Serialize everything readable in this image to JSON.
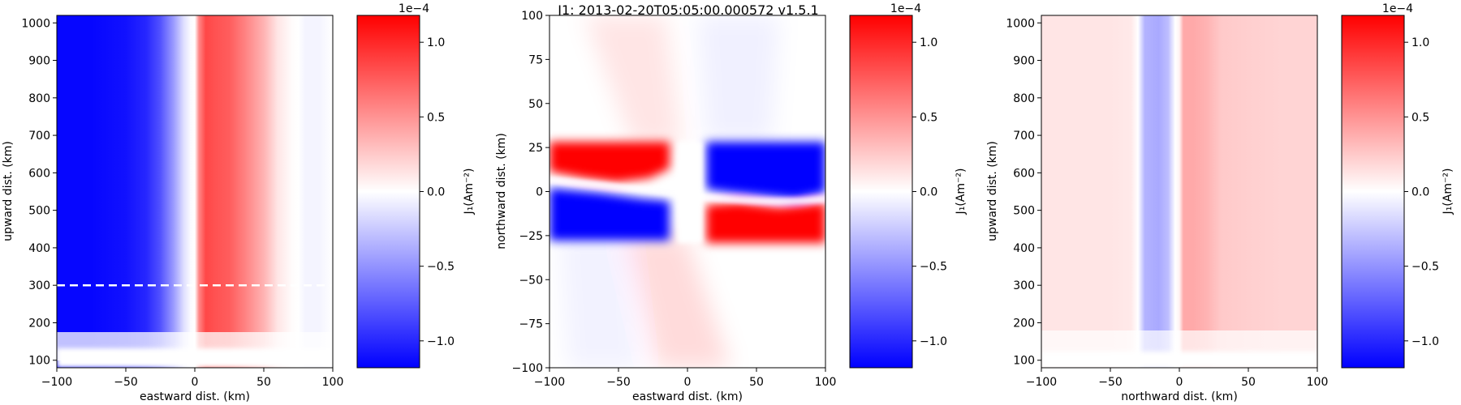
{
  "figure_title": "J1: 2013-02-20T05:05:00.000572  v1.5.1",
  "chart_data": [
    {
      "type": "heatmap",
      "panel": "eastward-upward",
      "xlabel": "eastward dist. (km)",
      "ylabel": "upward dist. (km)",
      "xlim": [
        -100,
        100
      ],
      "ylim": [
        80,
        1020
      ],
      "xticks": [
        -100,
        -50,
        0,
        50,
        100
      ],
      "yticks": [
        100,
        200,
        300,
        400,
        500,
        600,
        700,
        800,
        900,
        1000
      ],
      "dashed_line": {
        "y": 300,
        "x_range": [
          -100,
          100
        ],
        "color": "#ffffff"
      },
      "profile": {
        "description": "J1 varies mainly with eastward distance, roughly constant above 120 km",
        "x": [
          -100,
          -75,
          -50,
          -35,
          -25,
          -15,
          -8,
          -3,
          0,
          3,
          8,
          15,
          25,
          35,
          50,
          60,
          70,
          75,
          80,
          90,
          100
        ],
        "value_e4": [
          -1.15,
          -1.15,
          -1.1,
          -1.0,
          -0.8,
          -0.45,
          -0.15,
          -0.02,
          0.0,
          0.55,
          0.85,
          0.8,
          0.75,
          0.6,
          0.35,
          0.12,
          0.02,
          0.0,
          -0.05,
          -0.05,
          0.0
        ]
      },
      "colorbar": {
        "ticks": [
          1.0,
          0.5,
          0.0,
          -0.5,
          -1.0
        ],
        "tick_labels": [
          "1.0",
          "0.5",
          "0.0",
          "−0.5",
          "−1.0"
        ],
        "exponent_label": "1e−4",
        "label": "J₁(Am⁻²)",
        "vmin": -1.18,
        "vmax": 1.18
      }
    },
    {
      "type": "heatmap",
      "panel": "eastward-northward",
      "xlabel": "eastward dist. (km)",
      "ylabel": "northward dist. (km)",
      "xlim": [
        -100,
        100
      ],
      "ylim": [
        -100,
        100
      ],
      "xticks": [
        -100,
        -50,
        0,
        50,
        100
      ],
      "yticks": [
        -100,
        -75,
        -50,
        -25,
        0,
        25,
        50,
        75,
        100
      ],
      "features": [
        {
          "region": "x -100..-10, y 5..30",
          "value_e4": 1.1
        },
        {
          "region": "x -100..-10, y -30..0",
          "value_e4": -1.1
        },
        {
          "region": "x 10..100, y 0..30",
          "value_e4": -1.1
        },
        {
          "region": "x 10..100, y -30..-5",
          "value_e4": 1.0
        }
      ],
      "colorbar": {
        "ticks": [
          1.0,
          0.5,
          0.0,
          -0.5,
          -1.0
        ],
        "tick_labels": [
          "1.0",
          "0.5",
          "0.0",
          "−0.5",
          "−1.0"
        ],
        "exponent_label": "1e−4",
        "label": "J₁(Am⁻²)",
        "vmin": -1.18,
        "vmax": 1.18
      }
    },
    {
      "type": "heatmap",
      "panel": "northward-upward",
      "xlabel": "northward dist. (km)",
      "ylabel": "upward dist. (km)",
      "xlim": [
        -100,
        100
      ],
      "ylim": [
        80,
        1020
      ],
      "xticks": [
        -100,
        -50,
        0,
        50,
        100
      ],
      "yticks": [
        100,
        200,
        300,
        400,
        500,
        600,
        700,
        800,
        900,
        1000
      ],
      "profile": {
        "description": "J1 varies mainly with northward distance, roughly constant above 120 km",
        "x": [
          -100,
          -50,
          -35,
          -30,
          -25,
          -15,
          -8,
          -3,
          0,
          3,
          10,
          20,
          30,
          50,
          75,
          100
        ],
        "value_e4": [
          0.12,
          0.12,
          0.1,
          0.0,
          -0.35,
          -0.4,
          -0.3,
          0.0,
          0.05,
          0.4,
          0.4,
          0.35,
          0.25,
          0.22,
          0.2,
          0.2
        ]
      },
      "colorbar": {
        "ticks": [
          1.0,
          0.5,
          0.0,
          -0.5,
          -1.0
        ],
        "tick_labels": [
          "1.0",
          "0.5",
          "0.0",
          "−0.5",
          "−1.0"
        ],
        "exponent_label": "1e−4",
        "label": "J₁(Am⁻²)",
        "vmin": -1.18,
        "vmax": 1.18
      }
    }
  ]
}
